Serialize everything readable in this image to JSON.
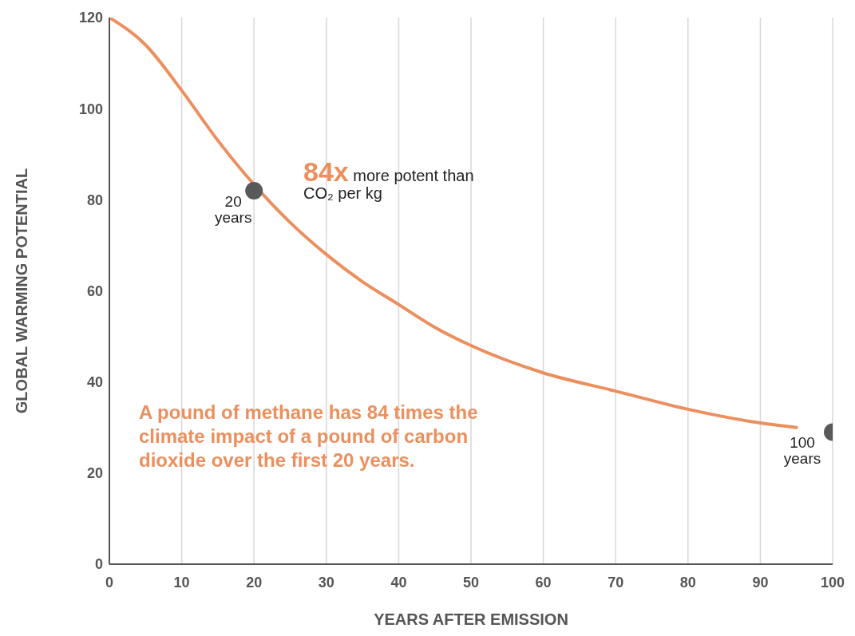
{
  "chart_data": {
    "type": "line",
    "xlabel": "YEARS AFTER EMISSION",
    "ylabel": "GLOBAL WARMING POTENTIAL",
    "xlim": [
      0,
      100
    ],
    "xticks": [
      0,
      10,
      20,
      30,
      40,
      50,
      60,
      70,
      80,
      90,
      100
    ],
    "ylim": [
      0,
      120
    ],
    "yticks": [
      0,
      20,
      40,
      60,
      80,
      100,
      120
    ],
    "grid": "x",
    "series": [
      {
        "color": "#ec8f5e",
        "marker": "none",
        "x": [
          0,
          5,
          10,
          15,
          25,
          30,
          35,
          40,
          45,
          50,
          60,
          70,
          80,
          90,
          95
        ],
        "values": [
          120,
          114,
          104,
          93,
          75,
          68,
          62,
          57,
          52,
          48,
          42,
          38,
          34,
          31,
          30
        ]
      },
      {
        "type": "scatter",
        "color": "#58595b",
        "marker": "circle",
        "x": [
          20,
          100
        ],
        "values": [
          82,
          29
        ]
      }
    ],
    "annotations": [
      {
        "text": "20 years",
        "x": 20,
        "y": 82
      },
      {
        "text": "100 years",
        "x": 100,
        "y": 29
      },
      "84x more potent than CO₂ per kg",
      "A pound of methane has 84 times the climate impact of a pound of carbon dioxide over the first 20 years."
    ]
  }
}
